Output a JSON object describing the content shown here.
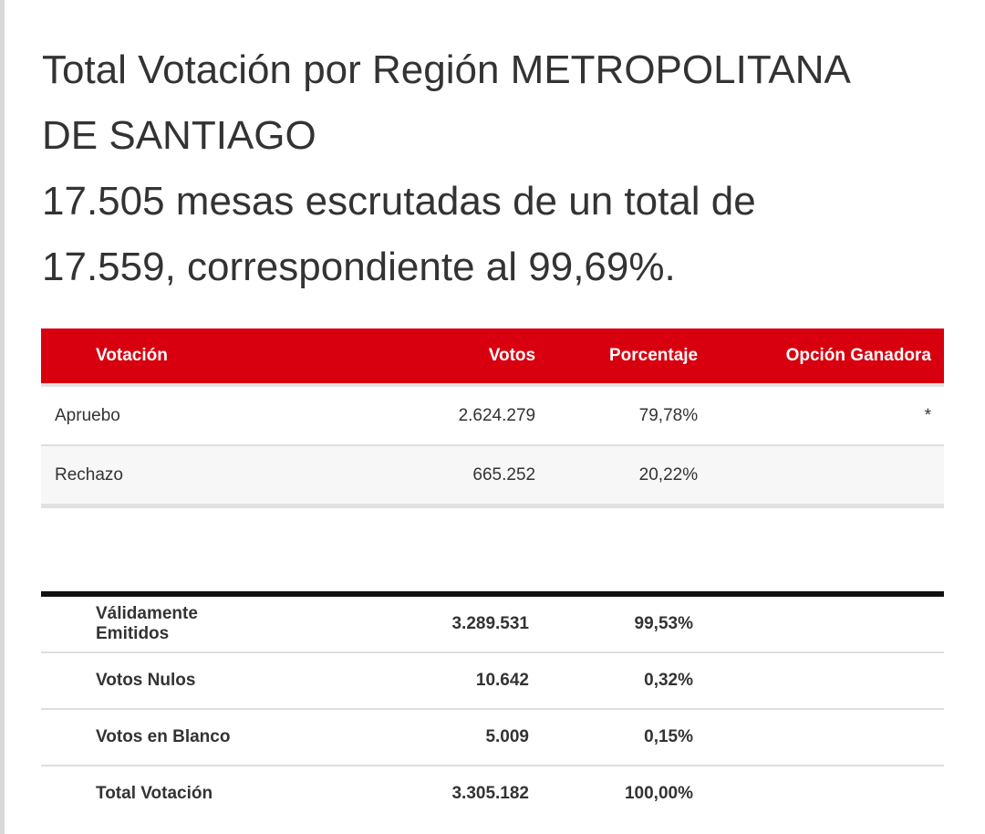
{
  "heading": {
    "line1": "Total Votación por Región METROPOLITANA",
    "line2": "DE SANTIAGO",
    "line3": "17.505 mesas escrutadas de un total de",
    "line4": "17.559, correspondiente al 99,69%."
  },
  "results": {
    "headers": [
      "Votación",
      "Votos",
      "Porcentaje",
      "Opción Ganadora"
    ],
    "rows": [
      {
        "option": "Apruebo",
        "votes": "2.624.279",
        "percent": "79,78%",
        "winner": "*"
      },
      {
        "option": "Rechazo",
        "votes": "665.252",
        "percent": "20,22%",
        "winner": ""
      }
    ]
  },
  "totals": {
    "rows": [
      {
        "label": "Válidamente Emitidos",
        "votes": "3.289.531",
        "percent": "99,53%"
      },
      {
        "label": "Votos Nulos",
        "votes": "10.642",
        "percent": "0,32%"
      },
      {
        "label": "Votos en Blanco",
        "votes": "5.009",
        "percent": "0,15%"
      },
      {
        "label": "Total Votación",
        "votes": "3.305.182",
        "percent": "100,00%"
      }
    ]
  },
  "colors": {
    "header_red": "#d8000f",
    "text": "#333333",
    "rule_dark": "#111111"
  }
}
